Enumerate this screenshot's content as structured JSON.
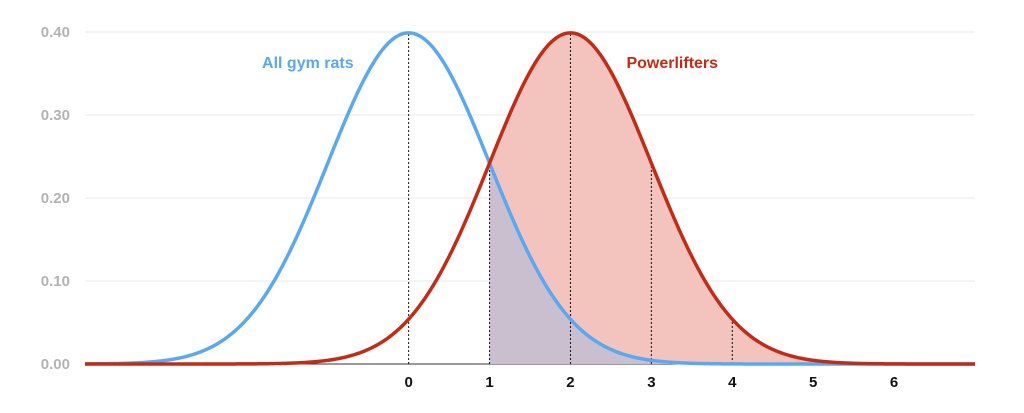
{
  "chart_data": {
    "type": "area",
    "title": "",
    "xlabel": "",
    "ylabel": "",
    "xlim": [
      -4,
      7
    ],
    "ylim": [
      0,
      0.4
    ],
    "grid": true,
    "yticks": [
      {
        "value": 0.0,
        "label": "0.00"
      },
      {
        "value": 0.1,
        "label": "0.10"
      },
      {
        "value": 0.2,
        "label": "0.20"
      },
      {
        "value": 0.3,
        "label": "0.30"
      },
      {
        "value": 0.4,
        "label": "0.40"
      }
    ],
    "xticks": [
      {
        "value": 0,
        "label": "0"
      },
      {
        "value": 1,
        "label": "1"
      },
      {
        "value": 2,
        "label": "2"
      },
      {
        "value": 3,
        "label": "3"
      },
      {
        "value": 4,
        "label": "4"
      },
      {
        "value": 5,
        "label": "5"
      },
      {
        "value": 6,
        "label": "6"
      }
    ],
    "series": [
      {
        "name": "All gym rats",
        "distribution": "normal",
        "mean": 0,
        "sd": 1,
        "color": "#58a9f4",
        "shaded_from": 1
      },
      {
        "name": "Powerlifters",
        "distribution": "normal",
        "mean": 2,
        "sd": 1,
        "color": "#c42b14",
        "fill_color": "#f2c4bd",
        "shaded_from": 1
      }
    ],
    "overlap_fill_color": "#c9bfcf",
    "vertical_markers": [
      {
        "x": 0,
        "series": "All gym rats"
      },
      {
        "x": 1,
        "series": "Powerlifters"
      },
      {
        "x": 2,
        "series": "Powerlifters"
      },
      {
        "x": 3,
        "series": "Powerlifters"
      },
      {
        "x": 4,
        "series": "Powerlifters"
      }
    ]
  }
}
